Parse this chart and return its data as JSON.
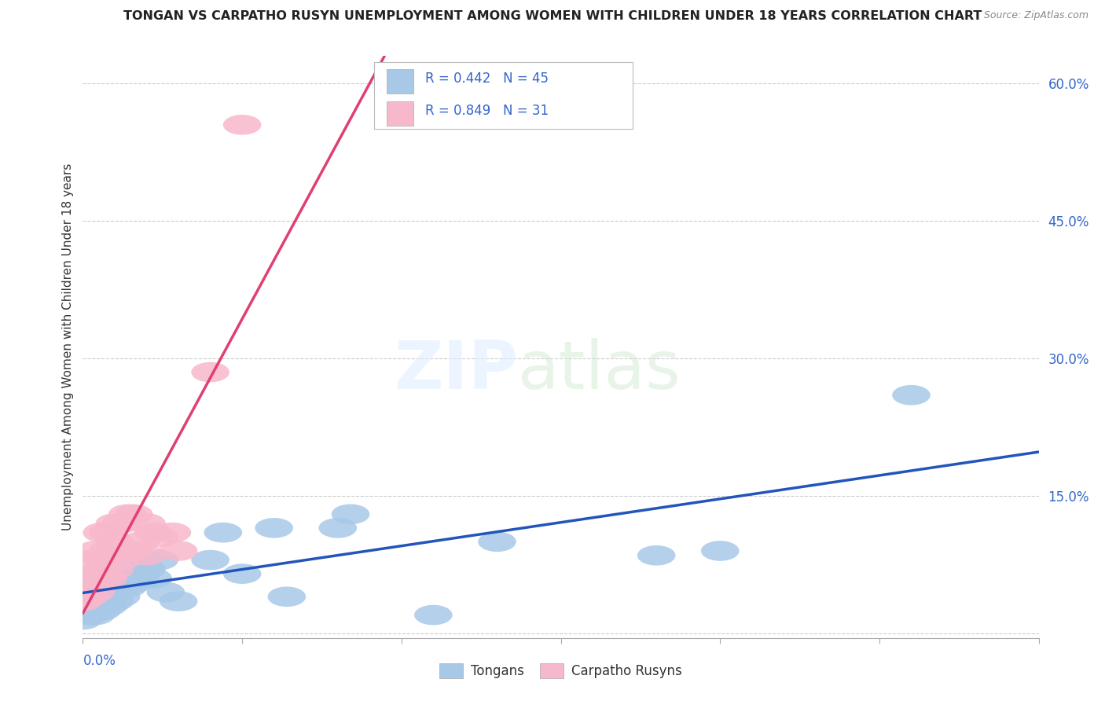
{
  "title": "TONGAN VS CARPATHO RUSYN UNEMPLOYMENT AMONG WOMEN WITH CHILDREN UNDER 18 YEARS CORRELATION CHART",
  "source": "Source: ZipAtlas.com",
  "ylabel": "Unemployment Among Women with Children Under 18 years",
  "xlim": [
    0,
    0.15
  ],
  "ylim": [
    -0.005,
    0.63
  ],
  "yticks": [
    0.0,
    0.15,
    0.3,
    0.45,
    0.6
  ],
  "ytick_labels": [
    "",
    "15.0%",
    "30.0%",
    "45.0%",
    "60.0%"
  ],
  "xtick_vals": [
    0.0,
    0.025,
    0.05,
    0.075,
    0.1,
    0.125,
    0.15
  ],
  "tongan_color": "#a8c8e8",
  "carpatho_color": "#f8b8cc",
  "line_blue": "#2255bb",
  "line_pink": "#e04070",
  "r_blue": 0.442,
  "n_blue": 45,
  "r_pink": 0.849,
  "n_pink": 31,
  "legend_color": "#3366cc",
  "tongan_x": [
    0.0,
    0.001,
    0.001,
    0.001,
    0.002,
    0.002,
    0.002,
    0.002,
    0.003,
    0.003,
    0.003,
    0.003,
    0.003,
    0.004,
    0.004,
    0.004,
    0.005,
    0.005,
    0.005,
    0.005,
    0.006,
    0.006,
    0.006,
    0.007,
    0.007,
    0.008,
    0.009,
    0.009,
    0.01,
    0.011,
    0.012,
    0.013,
    0.015,
    0.02,
    0.022,
    0.025,
    0.03,
    0.032,
    0.04,
    0.042,
    0.055,
    0.065,
    0.09,
    0.1,
    0.13
  ],
  "tongan_y": [
    0.015,
    0.02,
    0.03,
    0.04,
    0.02,
    0.03,
    0.04,
    0.05,
    0.025,
    0.035,
    0.05,
    0.055,
    0.065,
    0.03,
    0.045,
    0.06,
    0.035,
    0.05,
    0.065,
    0.08,
    0.04,
    0.06,
    0.08,
    0.05,
    0.07,
    0.055,
    0.06,
    0.08,
    0.07,
    0.06,
    0.08,
    0.045,
    0.035,
    0.08,
    0.11,
    0.065,
    0.115,
    0.04,
    0.115,
    0.13,
    0.02,
    0.1,
    0.085,
    0.09,
    0.26
  ],
  "carpatho_x": [
    0.0,
    0.001,
    0.001,
    0.001,
    0.002,
    0.002,
    0.002,
    0.003,
    0.003,
    0.003,
    0.004,
    0.004,
    0.004,
    0.005,
    0.005,
    0.005,
    0.006,
    0.006,
    0.007,
    0.007,
    0.008,
    0.008,
    0.009,
    0.01,
    0.01,
    0.011,
    0.012,
    0.014,
    0.015,
    0.02,
    0.025
  ],
  "carpatho_y": [
    0.035,
    0.04,
    0.06,
    0.08,
    0.045,
    0.065,
    0.09,
    0.06,
    0.08,
    0.11,
    0.06,
    0.09,
    0.11,
    0.07,
    0.1,
    0.12,
    0.08,
    0.12,
    0.09,
    0.13,
    0.09,
    0.13,
    0.1,
    0.085,
    0.12,
    0.11,
    0.105,
    0.11,
    0.09,
    0.285,
    0.555
  ],
  "blue_line_slope": 1.45,
  "blue_line_intercept": 0.025,
  "pink_line_slope": 22.0,
  "pink_line_intercept": 0.01
}
